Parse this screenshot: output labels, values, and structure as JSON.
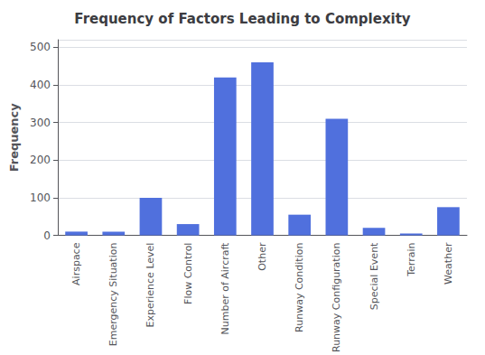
{
  "chart_data": {
    "type": "bar",
    "title": "Frequency of Factors Leading to Complexity",
    "ylabel": "Frequency",
    "categories": [
      "Airspace",
      "Emergency Situation",
      "Experience Level",
      "Flow Control",
      "Number of Aircraft",
      "Other",
      "Runway Condition",
      "Runway Configuration",
      "Special Event",
      "Terrain",
      "Weather"
    ],
    "values": [
      10,
      10,
      100,
      30,
      420,
      460,
      55,
      310,
      20,
      5,
      75
    ],
    "ylim": [
      0,
      520
    ],
    "yticks": [
      0,
      100,
      200,
      300,
      400,
      500
    ],
    "grid": true
  }
}
